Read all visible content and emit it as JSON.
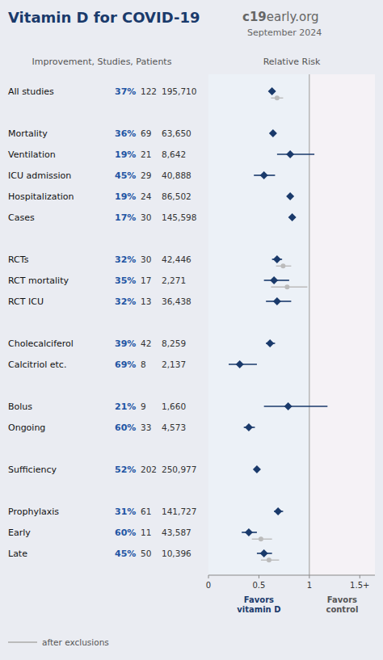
{
  "chart_data": {
    "type": "forest",
    "title": "Vitamin D for COVID-19",
    "brand_bold": "c19",
    "brand": "early.org",
    "subtitle": "September 2024",
    "column_header": "Improvement, Studies, Patients",
    "xlabel": "Relative Risk",
    "categories": [
      "All studies",
      null,
      "Mortality",
      "Ventilation",
      "ICU admission",
      "Hospitalization",
      "Cases",
      null,
      "RCTs",
      "RCT mortality",
      "RCT ICU",
      null,
      "Cholecalciferol",
      "Calcitriol etc.",
      null,
      "Bolus",
      "Ongoing",
      null,
      "Sufficiency",
      null,
      "Prophylaxis",
      "Early",
      "Late"
    ],
    "improvement": [
      {
        "value": 37,
        "label": "37%"
      },
      null,
      {
        "value": 36,
        "label": "36%"
      },
      {
        "value": 19,
        "label": "19%"
      },
      {
        "value": 45,
        "label": "45%"
      },
      {
        "value": 19,
        "label": "19%"
      },
      {
        "value": 17,
        "label": "17%"
      },
      null,
      {
        "value": 32,
        "label": "32%"
      },
      {
        "value": 35,
        "label": "35%"
      },
      {
        "value": 32,
        "label": "32%"
      },
      null,
      {
        "value": 39,
        "label": "39%"
      },
      {
        "value": 69,
        "label": "69%"
      },
      null,
      {
        "value": 21,
        "label": "21%"
      },
      {
        "value": 60,
        "label": "60%"
      },
      null,
      {
        "value": 52,
        "label": "52%"
      },
      null,
      {
        "value": 31,
        "label": "31%"
      },
      {
        "value": 60,
        "label": "60%"
      },
      {
        "value": 45,
        "label": "45%"
      }
    ],
    "studies": [
      122,
      null,
      69,
      21,
      29,
      24,
      30,
      null,
      30,
      17,
      13,
      null,
      42,
      8,
      null,
      9,
      33,
      null,
      202,
      null,
      61,
      11,
      50
    ],
    "patients": [
      {
        "value": 195710,
        "label": "195,710"
      },
      null,
      {
        "value": 63650,
        "label": "63,650"
      },
      {
        "value": 8642,
        "label": "8,642"
      },
      {
        "value": 40888,
        "label": "40,888"
      },
      {
        "value": 86502,
        "label": "86,502"
      },
      {
        "value": 145598,
        "label": "145,598"
      },
      null,
      {
        "value": 42446,
        "label": "42,446"
      },
      {
        "value": 2271,
        "label": "2,271"
      },
      {
        "value": 36438,
        "label": "36,438"
      },
      null,
      {
        "value": 8259,
        "label": "8,259"
      },
      {
        "value": 2137,
        "label": "2,137"
      },
      null,
      {
        "value": 1660,
        "label": "1,660"
      },
      {
        "value": 4573,
        "label": "4,573"
      },
      null,
      {
        "value": 250977,
        "label": "250,977"
      },
      null,
      {
        "value": 141727,
        "label": "141,727"
      },
      {
        "value": 43587,
        "label": "43,587"
      },
      {
        "value": 10396,
        "label": "10,396"
      }
    ],
    "series": [
      {
        "color": "#1a3a6b",
        "marker": "diamond",
        "values": [
          0.63,
          null,
          0.64,
          0.81,
          0.55,
          0.81,
          0.83,
          null,
          0.68,
          0.65,
          0.68,
          null,
          0.61,
          0.31,
          null,
          0.79,
          0.4,
          null,
          0.48,
          null,
          0.69,
          0.4,
          0.55
        ],
        "ci_lo": [
          0.6,
          null,
          0.62,
          0.68,
          0.45,
          0.78,
          0.8,
          null,
          0.63,
          0.55,
          0.57,
          null,
          0.57,
          0.2,
          null,
          0.55,
          0.35,
          null,
          0.46,
          null,
          0.65,
          0.33,
          0.48
        ],
        "ci_hi": [
          0.66,
          null,
          0.67,
          1.05,
          0.66,
          0.84,
          0.86,
          null,
          0.73,
          0.8,
          0.82,
          null,
          0.66,
          0.48,
          null,
          1.18,
          0.46,
          null,
          0.5,
          null,
          0.74,
          0.48,
          0.63
        ]
      },
      {
        "name": "after exclusions",
        "color": "#bbbbbb",
        "marker": "circle",
        "values": [
          0.68,
          null,
          null,
          null,
          null,
          null,
          null,
          null,
          0.74,
          0.78,
          null,
          null,
          null,
          null,
          null,
          null,
          null,
          null,
          null,
          null,
          null,
          0.52,
          0.6
        ],
        "ci_lo": [
          0.62,
          null,
          null,
          null,
          null,
          null,
          null,
          null,
          0.67,
          0.62,
          null,
          null,
          null,
          null,
          null,
          null,
          null,
          null,
          null,
          null,
          null,
          0.43,
          0.52
        ],
        "ci_hi": [
          0.74,
          null,
          null,
          null,
          null,
          null,
          null,
          null,
          0.82,
          0.98,
          null,
          null,
          null,
          null,
          null,
          null,
          null,
          null,
          null,
          null,
          null,
          0.63,
          0.7
        ]
      }
    ],
    "reference_line": 1.0,
    "annotations": [
      "Favors\nvitamin D",
      "Favors\ncontrol"
    ],
    "xlim": [
      0,
      1.65
    ],
    "xticks": [
      0,
      0.5,
      1,
      {
        "value": 1.5,
        "label": "1.5+"
      }
    ],
    "grid": false,
    "legend": "lower left"
  }
}
